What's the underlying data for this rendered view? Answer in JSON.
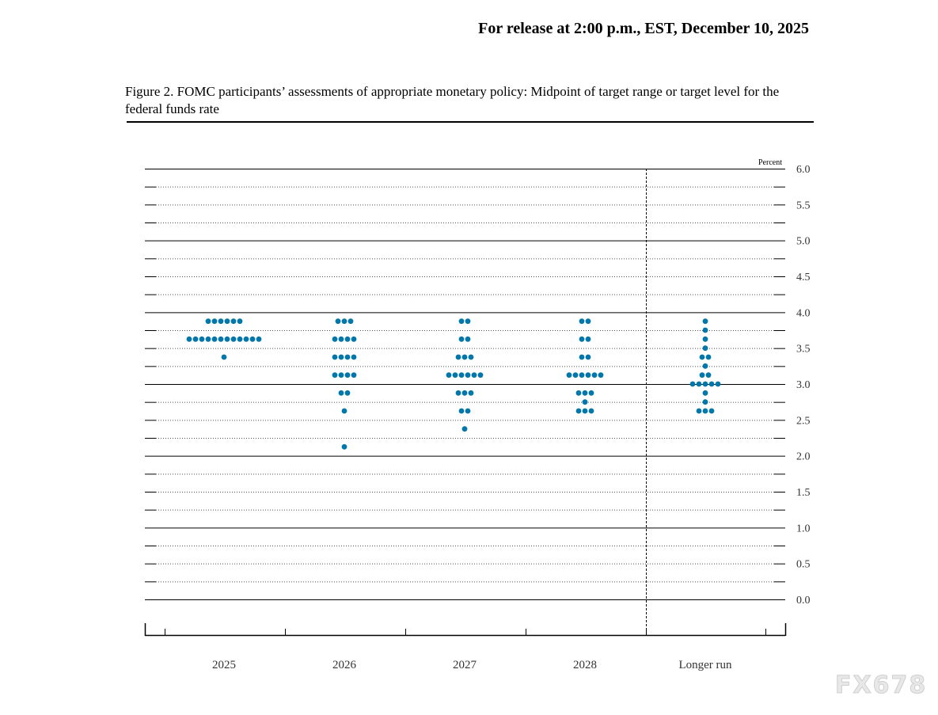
{
  "header": {
    "release": "For release at 2:00 p.m., EST, December 10, 2025"
  },
  "figure_title": "Figure 2. FOMC participants’ assessments of appropriate monetary policy: Midpoint of target range or target level for the federal funds rate",
  "watermark": "FX678",
  "chart_data": {
    "type": "scatter",
    "unit_label": "Percent",
    "categories": [
      "2025",
      "2026",
      "2027",
      "2028",
      "Longer run"
    ],
    "ylim": [
      0,
      6
    ],
    "yticks": [
      "0.0",
      "0.5",
      "1.0",
      "1.5",
      "2.0",
      "2.5",
      "3.0",
      "3.5",
      "4.0",
      "4.5",
      "5.0",
      "5.5",
      "6.0"
    ],
    "dot_color": "#0077a8",
    "grid": "solid at whole percents, dotted at 0.25 steps",
    "dots": [
      {
        "category": "2025",
        "counts": [
          [
            3.875,
            6
          ],
          [
            3.625,
            12
          ],
          [
            3.375,
            1
          ]
        ]
      },
      {
        "category": "2026",
        "counts": [
          [
            3.875,
            3
          ],
          [
            3.625,
            4
          ],
          [
            3.375,
            4
          ],
          [
            3.125,
            4
          ],
          [
            2.875,
            2
          ],
          [
            2.625,
            1
          ],
          [
            2.125,
            1
          ]
        ]
      },
      {
        "category": "2027",
        "counts": [
          [
            3.875,
            2
          ],
          [
            3.625,
            2
          ],
          [
            3.375,
            3
          ],
          [
            3.125,
            6
          ],
          [
            2.875,
            3
          ],
          [
            2.625,
            2
          ],
          [
            2.375,
            1
          ]
        ]
      },
      {
        "category": "2028",
        "counts": [
          [
            3.875,
            2
          ],
          [
            3.625,
            2
          ],
          [
            3.375,
            2
          ],
          [
            3.125,
            6
          ],
          [
            2.875,
            3
          ],
          [
            2.75,
            1
          ],
          [
            2.625,
            3
          ]
        ]
      },
      {
        "category": "Longer run",
        "counts": [
          [
            3.875,
            1
          ],
          [
            3.75,
            1
          ],
          [
            3.625,
            1
          ],
          [
            3.5,
            1
          ],
          [
            3.375,
            2
          ],
          [
            3.25,
            1
          ],
          [
            3.125,
            2
          ],
          [
            3.0,
            5
          ],
          [
            2.875,
            1
          ],
          [
            2.75,
            1
          ],
          [
            2.625,
            3
          ]
        ]
      }
    ]
  }
}
